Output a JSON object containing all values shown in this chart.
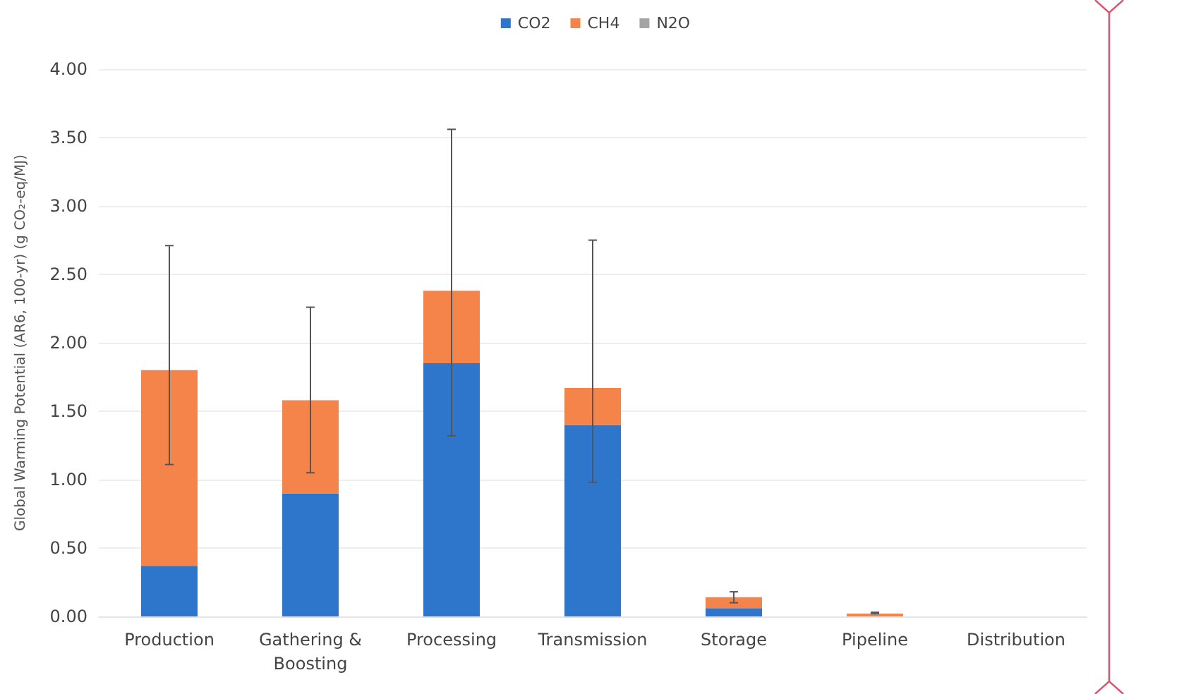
{
  "chart_data": {
    "type": "bar",
    "stacked": true,
    "ylabel": "Global Warming Potential (AR6, 100-yr) (g CO₂-eq/MJ)",
    "categories": [
      "Production",
      "Gathering &\nBoosting",
      "Processing",
      "Transmission",
      "Storage",
      "Pipeline",
      "Distribution"
    ],
    "series": [
      {
        "name": "CO2",
        "color": "#2e75cc",
        "values": [
          0.37,
          0.9,
          1.85,
          1.4,
          0.06,
          0.0,
          0.0
        ]
      },
      {
        "name": "CH4",
        "color": "#f4844a",
        "values": [
          1.43,
          0.68,
          0.53,
          0.27,
          0.08,
          0.02,
          0.0
        ],
        "errors": [
          [
            1.11,
            2.71
          ],
          [
            1.05,
            2.26
          ],
          [
            1.32,
            3.56
          ],
          [
            0.98,
            2.75
          ],
          [
            0.1,
            0.18
          ],
          [
            0.02,
            0.03
          ],
          null
        ]
      },
      {
        "name": "N2O",
        "color": "#a5a5a5",
        "values": [
          0.0,
          0.0,
          0.0,
          0.0,
          0.0,
          0.0,
          0.0
        ]
      }
    ],
    "ylim": [
      0,
      4
    ],
    "yticks": [
      {
        "value": 0,
        "label": "0.00"
      },
      {
        "value": 0.5,
        "label": "0.50"
      },
      {
        "value": 1,
        "label": "1.00"
      },
      {
        "value": 1.5,
        "label": "1.50"
      },
      {
        "value": 2,
        "label": "2.00"
      },
      {
        "value": 2.5,
        "label": "2.50"
      },
      {
        "value": 3,
        "label": "3.00"
      },
      {
        "value": 3.5,
        "label": "3.50"
      },
      {
        "value": 4,
        "label": "4.00"
      }
    ],
    "grid": "y",
    "legend": "top"
  }
}
